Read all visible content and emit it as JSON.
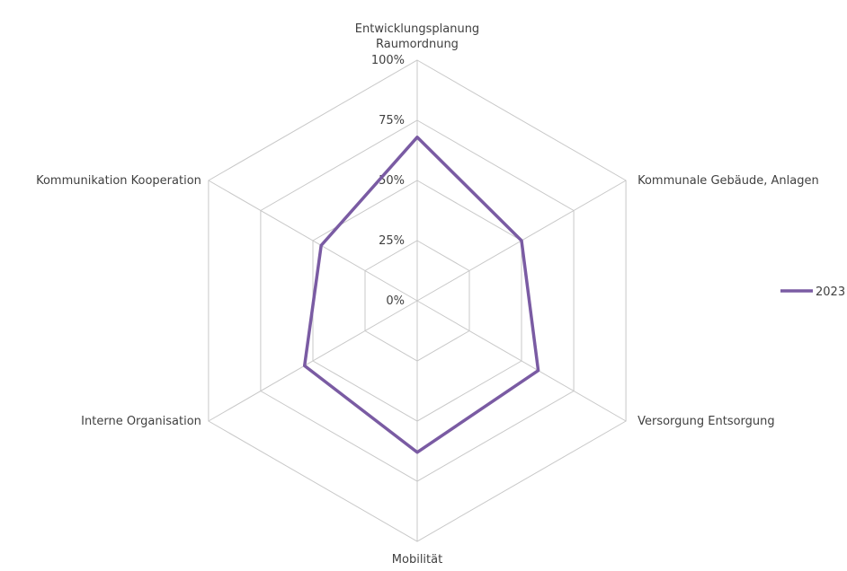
{
  "chart_data": {
    "type": "radar",
    "categories": [
      [
        "Entwicklungsplanung",
        "Raumordnung"
      ],
      [
        "Kommunale Gebäude, Anlagen"
      ],
      [
        "Versorgung Entsorgung"
      ],
      [
        "Mobilität"
      ],
      [
        "Interne Organisation"
      ],
      [
        "Kommunikation Kooperation"
      ]
    ],
    "series": [
      {
        "name": "2023",
        "values": [
          68,
          50,
          58,
          63,
          54,
          46
        ],
        "color": "#7a5ba3"
      }
    ],
    "rlim": [
      0,
      100
    ],
    "ticks": [
      0,
      25,
      50,
      75,
      100
    ],
    "tick_labels": [
      "0%",
      "25%",
      "50%",
      "75%",
      "100%"
    ],
    "grid_color": "#c8c8c8",
    "legend_position": "right",
    "title": ""
  }
}
